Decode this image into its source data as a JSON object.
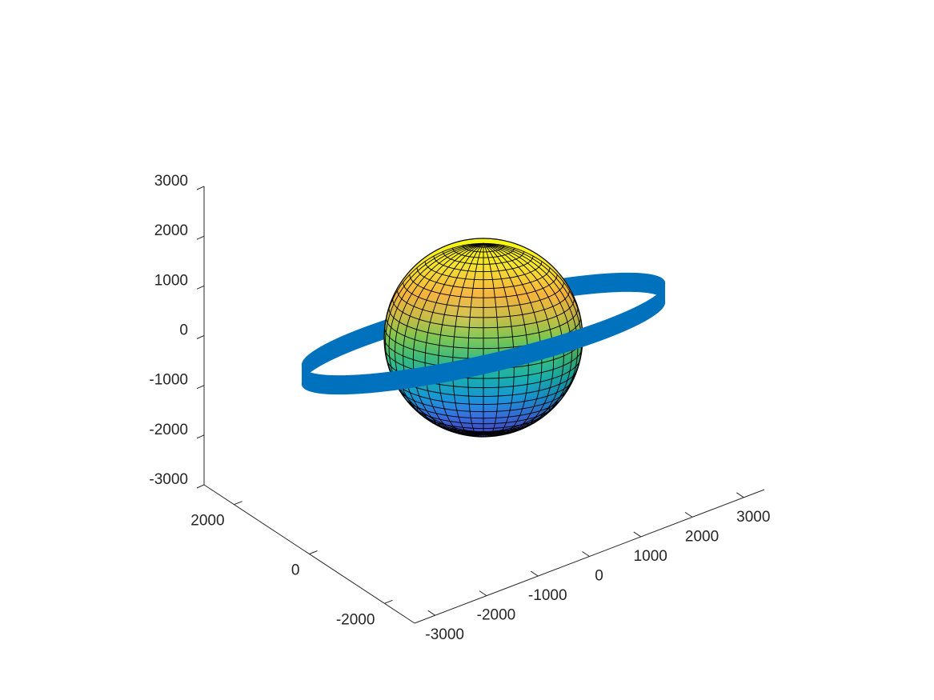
{
  "chart_data": {
    "type": "surface",
    "title": "",
    "xlabel": "",
    "ylabel": "",
    "zlabel": "",
    "grid": false,
    "colormap": "parula",
    "axes": {
      "x": {
        "ticks": [
          -3000,
          -2000,
          -1000,
          0,
          1000,
          2000,
          3000
        ],
        "tick_labels": [
          "-3000",
          "-2000",
          "-1000",
          "0",
          "1000",
          "2000",
          "3000"
        ],
        "range": [
          -3400,
          3400
        ]
      },
      "y": {
        "ticks": [
          -2000,
          0,
          2000
        ],
        "tick_labels": [
          "-2000",
          "0",
          "2000"
        ],
        "range": [
          -2800,
          2800
        ]
      },
      "z": {
        "ticks": [
          -3000,
          -2000,
          -1000,
          0,
          1000,
          2000,
          3000
        ],
        "tick_labels": [
          "-3000",
          "-2000",
          "-1000",
          "0",
          "1000",
          "2000",
          "3000"
        ],
        "range": [
          -3000,
          3000
        ]
      }
    },
    "sphere": {
      "center": [
        0,
        0,
        0
      ],
      "radius": 2000,
      "meridian_divisions": 40,
      "parallel_divisions": 30,
      "edge_color": "#000000"
    },
    "ring": {
      "color": "#0072BD",
      "radius": 3200,
      "tilt_deg": 20
    }
  }
}
